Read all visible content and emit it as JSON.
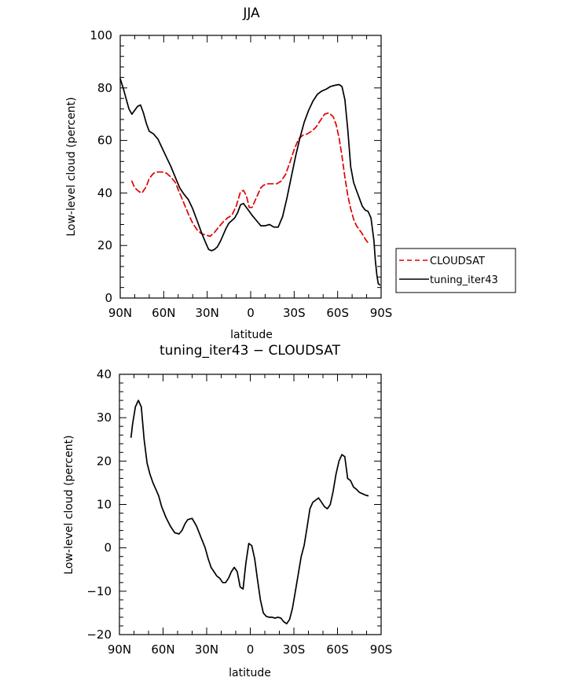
{
  "chart_data": [
    {
      "type": "line",
      "title": "JJA",
      "xlabel": "latitude",
      "ylabel": "Low-level cloud (percent)",
      "xlim": [
        -90,
        90
      ],
      "ylim": [
        0,
        100
      ],
      "xticks": [
        -90,
        -60,
        -30,
        0,
        30,
        60,
        90
      ],
      "xtick_labels": [
        "90N",
        "60N",
        "30N",
        "0",
        "30S",
        "60S",
        "90S"
      ],
      "yticks": [
        0,
        20,
        40,
        60,
        80,
        100
      ],
      "ytick_labels": [
        "0",
        "20",
        "40",
        "60",
        "80",
        "100"
      ],
      "legend_position": "right",
      "series": [
        {
          "name": "CLOUDSAT",
          "color": "#e00000",
          "dash": "dashed",
          "x": [
            -82,
            -80,
            -77,
            -75,
            -72,
            -70,
            -67,
            -64,
            -61,
            -58,
            -55,
            -52,
            -49,
            -46,
            -43,
            -40,
            -37,
            -34,
            -31,
            -28,
            -25,
            -22,
            -19,
            -16,
            -13,
            -10,
            -7,
            -5,
            -3,
            -1,
            1,
            3,
            5,
            7,
            9,
            12,
            15,
            18,
            21,
            24,
            27,
            30,
            33,
            36,
            39,
            42,
            45,
            48,
            51,
            54,
            57,
            59,
            61,
            63,
            65,
            67,
            69,
            71,
            73,
            75,
            77,
            79,
            81
          ],
          "values": [
            44.5,
            42,
            40.5,
            40,
            42.5,
            45.5,
            47.5,
            48,
            48,
            47.5,
            46,
            44,
            40,
            36,
            32,
            28.5,
            26,
            24.5,
            24,
            23.5,
            25,
            27,
            29,
            30.5,
            31.5,
            35,
            40.5,
            41,
            39,
            34.5,
            34.5,
            37,
            39.5,
            42,
            43,
            43.5,
            43.5,
            43.5,
            44.5,
            47,
            51.5,
            56.5,
            60.5,
            62,
            62.5,
            63.5,
            65,
            67.5,
            70,
            70.5,
            69,
            66,
            61,
            54,
            46,
            39,
            34,
            30,
            27.5,
            26,
            24.5,
            22.5,
            21
          ]
        },
        {
          "name": "tuning_iter43",
          "color": "#000000",
          "dash": "solid",
          "x": [
            -90,
            -88,
            -86,
            -84,
            -82,
            -80,
            -78,
            -76,
            -74,
            -72,
            -70,
            -67,
            -64,
            -61,
            -58,
            -55,
            -52,
            -49,
            -46,
            -43,
            -40,
            -37,
            -34,
            -31,
            -29,
            -27,
            -25,
            -23,
            -21,
            -19,
            -17,
            -15,
            -13,
            -11,
            -9,
            -7,
            -5,
            -3,
            -1,
            1,
            4,
            7,
            10,
            13,
            16,
            19,
            22,
            25,
            28,
            31,
            34,
            37,
            40,
            43,
            46,
            49,
            52,
            55,
            58,
            61,
            63,
            65,
            67,
            69,
            71,
            73,
            75,
            77,
            79,
            81,
            83,
            85,
            86,
            87,
            88,
            89
          ],
          "values": [
            83.5,
            80,
            76,
            72,
            70,
            71.5,
            73,
            73.5,
            70.5,
            66.5,
            63.5,
            62.5,
            60.5,
            57,
            53.5,
            50,
            46,
            42,
            39.5,
            37.5,
            34,
            29.5,
            25,
            21,
            18.5,
            18,
            18.5,
            19.5,
            21.5,
            24,
            26.5,
            28.5,
            29.5,
            30.5,
            32.5,
            35.5,
            36,
            34.5,
            33,
            31.5,
            29.5,
            27.5,
            27.5,
            28,
            27,
            27,
            31,
            38,
            46,
            54,
            61,
            67,
            71.5,
            75,
            77.5,
            78.8,
            79.5,
            80.5,
            81,
            81.3,
            80.5,
            75.5,
            64,
            50,
            44,
            41,
            38,
            35,
            33.5,
            33,
            30.5,
            22,
            14.5,
            9,
            5.5,
            5
          ]
        }
      ]
    },
    {
      "type": "line",
      "title": "tuning_iter43 − CLOUDSAT",
      "xlabel": "latitude",
      "ylabel": "Low-level cloud (percent)",
      "xlim": [
        -90,
        90
      ],
      "ylim": [
        -20,
        40
      ],
      "xticks": [
        -90,
        -60,
        -30,
        0,
        30,
        60,
        90
      ],
      "xtick_labels": [
        "90N",
        "60N",
        "30N",
        "0",
        "30S",
        "60S",
        "90S"
      ],
      "yticks": [
        -20,
        -10,
        0,
        10,
        20,
        30,
        40
      ],
      "ytick_labels": [
        "−20",
        "−10",
        "0",
        "10",
        "20",
        "30",
        "40"
      ],
      "series": [
        {
          "name": "tuning_iter43 − CLOUDSAT",
          "color": "#000000",
          "dash": "solid",
          "x": [
            -82,
            -81,
            -79,
            -77,
            -75,
            -73,
            -71,
            -69,
            -67,
            -65,
            -63,
            -61,
            -58,
            -55,
            -52,
            -49,
            -47,
            -45,
            -43,
            -40,
            -37,
            -34,
            -31,
            -29,
            -27,
            -25,
            -23,
            -21,
            -19,
            -17,
            -15,
            -13,
            -11,
            -9,
            -7,
            -5,
            -3,
            -1,
            1,
            3,
            5,
            7,
            9,
            11,
            13,
            15,
            17,
            19,
            21,
            23,
            25,
            27,
            29,
            31,
            33,
            35,
            37,
            39,
            41,
            43,
            45,
            47,
            49,
            51,
            53,
            55,
            57,
            59,
            61,
            63,
            65,
            67,
            69,
            71,
            73,
            75,
            77,
            79,
            81
          ],
          "values": [
            25.5,
            28.5,
            32.5,
            34,
            32.5,
            25,
            19.5,
            17,
            15,
            13.5,
            12,
            9.5,
            7,
            5,
            3.5,
            3.2,
            4,
            5.5,
            6.5,
            6.8,
            5,
            2.5,
            0,
            -2.5,
            -4.5,
            -5.5,
            -6.5,
            -7,
            -8,
            -8,
            -7,
            -5.5,
            -4.5,
            -5.5,
            -9,
            -9.5,
            -3.5,
            1,
            0.5,
            -2.5,
            -7.5,
            -12,
            -15,
            -15.8,
            -16,
            -16,
            -16.2,
            -16,
            -16.2,
            -17,
            -17.5,
            -16.5,
            -14,
            -10,
            -6,
            -2,
            0.5,
            4.5,
            9,
            10.5,
            11,
            11.5,
            10.5,
            9.5,
            9,
            10,
            13,
            17,
            20,
            21.5,
            21,
            16,
            15.5,
            14,
            13.5,
            12.8,
            12.5,
            12.2,
            12
          ]
        }
      ]
    }
  ]
}
